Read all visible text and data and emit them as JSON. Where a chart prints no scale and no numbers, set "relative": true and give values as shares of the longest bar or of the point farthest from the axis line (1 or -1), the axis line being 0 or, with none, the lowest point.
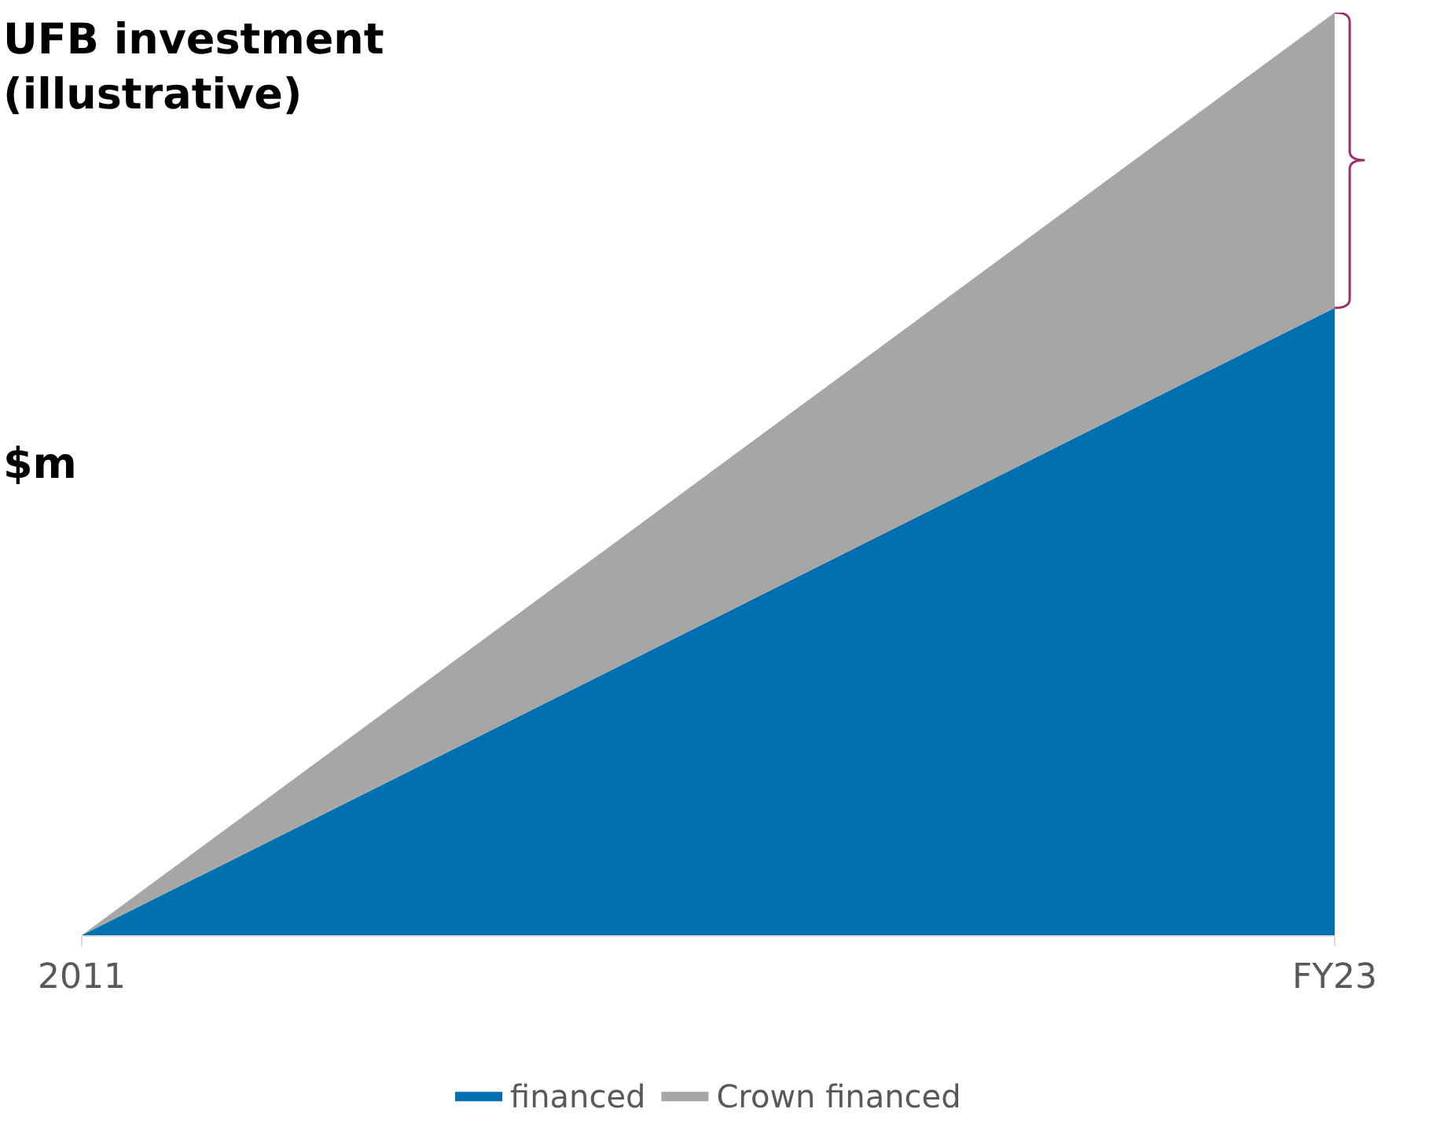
{
  "chart_data": {
    "type": "area",
    "title": "UFB investment\n(illustrative)",
    "ylabel": "$m",
    "categories": [
      "2011",
      "FY23"
    ],
    "stacked": true,
    "relative": true,
    "legend": "bottom",
    "series": [
      {
        "name": "financed",
        "color": "#0070b0",
        "values": [
          0,
          0.68
        ]
      },
      {
        "name": "Crown financed",
        "color": "#a6a6a6",
        "values": [
          0,
          0.32
        ]
      }
    ]
  }
}
